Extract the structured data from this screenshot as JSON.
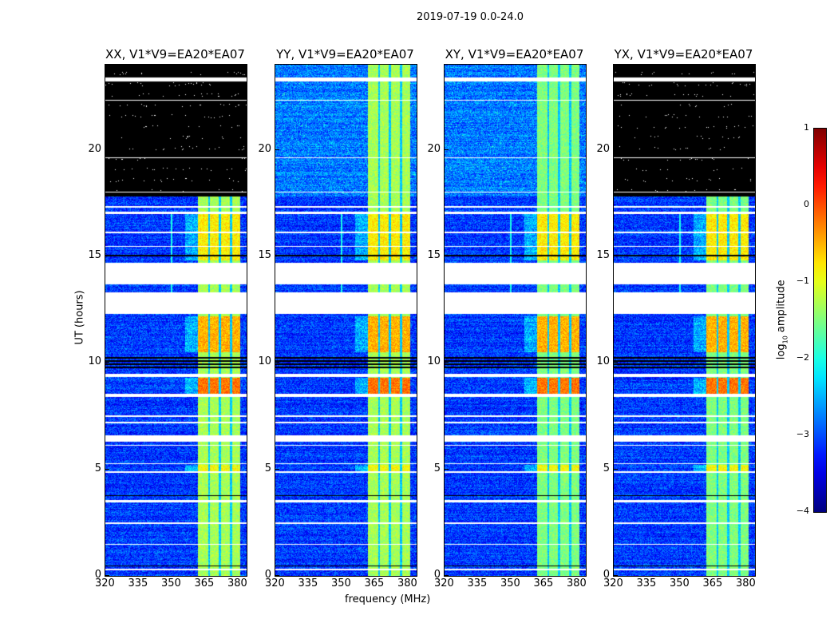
{
  "suptitle": "2019-07-19 0.0-24.0",
  "xlabel": "frequency (MHz)",
  "ylabel": "UT (hours)",
  "colorbar": {
    "label_prefix": "log",
    "label_sub": "10",
    "label_suffix": " amplitude",
    "ticks": [
      "1",
      "0",
      "−1",
      "−2",
      "−3",
      "−4"
    ],
    "range": [
      -4,
      1
    ],
    "colormap": "jet"
  },
  "chart_data": {
    "type": "heatmap",
    "xlim": [
      320,
      384
    ],
    "ylim": [
      0,
      24
    ],
    "xticks": [
      "320",
      "335",
      "350",
      "365",
      "380"
    ],
    "yticks": [
      "0",
      "5",
      "10",
      "15",
      "20"
    ],
    "rfi_band_mhz": [
      362,
      381
    ],
    "subband_edges_mhz": [
      367,
      372,
      377
    ],
    "flagged_white_hours": [
      [
        12.3,
        13.3
      ],
      [
        13.7,
        14.7
      ],
      [
        23.2,
        23.4
      ],
      [
        9.35,
        9.5
      ],
      [
        8.4,
        8.55
      ],
      [
        7.45,
        7.55
      ],
      [
        7.15,
        7.25
      ],
      [
        6.3,
        6.6
      ],
      [
        6.1,
        6.15
      ],
      [
        5.25,
        5.3
      ],
      [
        4.85,
        4.9
      ],
      [
        3.45,
        3.55
      ],
      [
        2.45,
        2.5
      ],
      [
        1.45,
        1.5
      ],
      [
        0.25,
        0.35
      ],
      [
        15.45,
        15.5
      ],
      [
        16.1,
        16.15
      ],
      [
        17.0,
        17.1
      ],
      [
        17.3,
        17.35
      ],
      [
        18.0,
        18.05
      ],
      [
        19.6,
        19.65
      ],
      [
        22.3,
        22.35
      ]
    ],
    "flagged_black_hours": [
      [
        9.7,
        10.3
      ],
      [
        14.95,
        15.1
      ],
      [
        3.7,
        3.8
      ],
      [
        0.45,
        0.5
      ]
    ],
    "enhanced_hours": [
      [
        8.5,
        9.3,
        -0.2
      ],
      [
        10.5,
        12.2,
        -0.5
      ],
      [
        14.8,
        17.0,
        -0.8
      ],
      [
        4.9,
        5.2,
        -0.9
      ]
    ],
    "panels": [
      {
        "title": "XX, V1*V9=EA20*EA07",
        "blank_above_hours": 17.8
      },
      {
        "title": "YY, V1*V9=EA20*EA07",
        "blank_above_hours": null
      },
      {
        "title": "XY, V1*V9=EA20*EA07",
        "blank_above_hours": null
      },
      {
        "title": "YX, V1*V9=EA20*EA07",
        "blank_above_hours": 17.8
      }
    ]
  }
}
